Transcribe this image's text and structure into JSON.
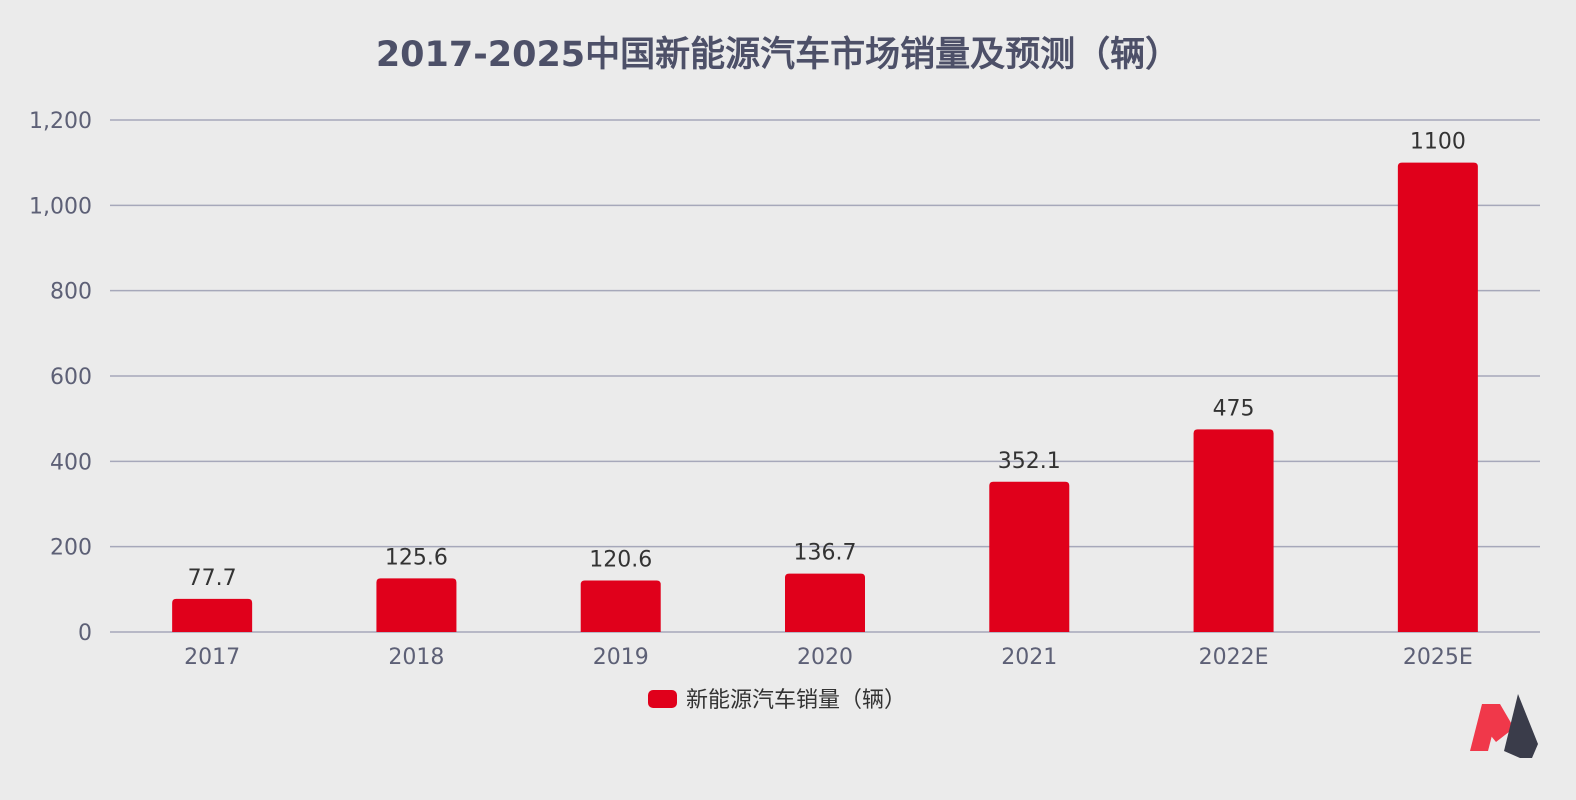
{
  "chart_data": {
    "type": "bar",
    "title": "2017-2025中国新能源汽车市场销量及预测（辆）",
    "categories": [
      "2017",
      "2018",
      "2019",
      "2020",
      "2021",
      "2022E",
      "2025E"
    ],
    "series": [
      {
        "name": "新能源汽车销量（辆）",
        "values": [
          77.7,
          125.6,
          120.6,
          136.7,
          352.1,
          475,
          1100
        ],
        "labels": [
          "77.7",
          "125.6",
          "120.6",
          "136.7",
          "352.1",
          "475",
          "1100"
        ],
        "color": "#e0001b"
      }
    ],
    "xlabel": "",
    "ylabel": "",
    "ylim": [
      0,
      1200
    ],
    "yticks": [
      0,
      200,
      400,
      600,
      800,
      1000,
      1200
    ],
    "ytick_labels": [
      "0",
      "200",
      "400",
      "600",
      "800",
      "1,000",
      "1,200"
    ],
    "grid": true,
    "legend": "bottom-center"
  },
  "colors": {
    "background": "#ebebeb",
    "bar": "#e0001b",
    "title": "#4d5068",
    "grid": "#a6a8ba",
    "logo_red": "#f0384a",
    "logo_dark": "#3a3c4a"
  }
}
